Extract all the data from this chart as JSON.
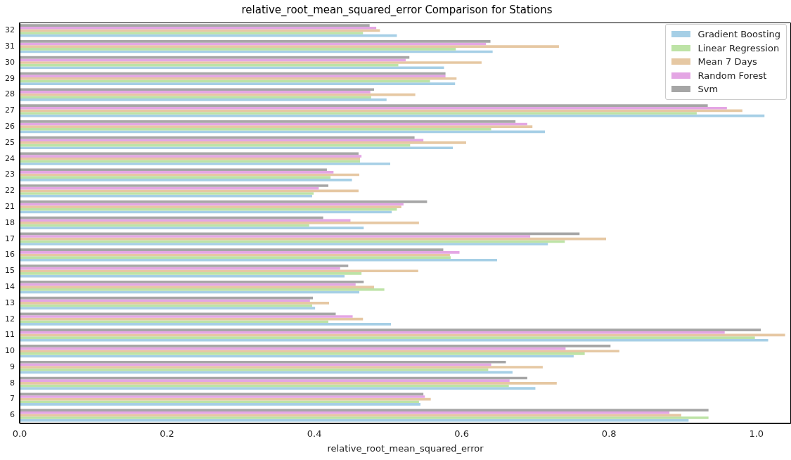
{
  "chart_data": {
    "type": "bar",
    "orientation": "horizontal",
    "title": "relative_root_mean_squared_error Comparison for Stations",
    "xlabel": "relative_root_mean_squared_error",
    "categories": [
      "32",
      "31",
      "30",
      "29",
      "28",
      "27",
      "26",
      "25",
      "24",
      "23",
      "22",
      "21",
      "18",
      "17",
      "16",
      "15",
      "14",
      "13",
      "12",
      "11",
      "10",
      "9",
      "8",
      "7",
      "6"
    ],
    "series": [
      {
        "name": "Gradient Boosting",
        "color": "#a6cfe6",
        "values": [
          0.512,
          0.642,
          0.576,
          0.591,
          0.498,
          1.011,
          0.713,
          0.588,
          0.503,
          0.451,
          0.397,
          0.505,
          0.467,
          0.717,
          0.648,
          0.441,
          0.461,
          0.401,
          0.504,
          1.016,
          0.752,
          0.669,
          0.7,
          0.544,
          0.908
        ]
      },
      {
        "name": "Linear Regression",
        "color": "#bde3a6",
        "values": [
          0.466,
          0.592,
          0.514,
          0.557,
          0.477,
          0.919,
          0.64,
          0.53,
          0.462,
          0.422,
          0.399,
          0.512,
          0.393,
          0.74,
          0.585,
          0.464,
          0.495,
          0.397,
          0.419,
          0.998,
          0.767,
          0.636,
          0.664,
          0.542,
          0.935
        ]
      },
      {
        "name": "Mean 7 Days",
        "color": "#e6c8a3",
        "values": [
          0.489,
          0.732,
          0.627,
          0.593,
          0.537,
          0.981,
          0.696,
          0.606,
          0.462,
          0.461,
          0.46,
          0.518,
          0.542,
          0.796,
          0.584,
          0.541,
          0.481,
          0.42,
          0.466,
          1.039,
          0.814,
          0.71,
          0.729,
          0.558,
          0.898
        ]
      },
      {
        "name": "Random Forest",
        "color": "#e4a6e4",
        "values": [
          0.484,
          0.633,
          0.524,
          0.578,
          0.476,
          0.96,
          0.689,
          0.548,
          0.464,
          0.426,
          0.406,
          0.521,
          0.449,
          0.693,
          0.597,
          0.435,
          0.456,
          0.394,
          0.452,
          0.957,
          0.741,
          0.64,
          0.665,
          0.55,
          0.882
        ]
      },
      {
        "name": "Svm",
        "color": "#a6a6a6",
        "values": [
          0.475,
          0.639,
          0.529,
          0.578,
          0.481,
          0.934,
          0.673,
          0.536,
          0.46,
          0.417,
          0.419,
          0.553,
          0.412,
          0.76,
          0.575,
          0.446,
          0.467,
          0.398,
          0.429,
          1.006,
          0.802,
          0.66,
          0.689,
          0.548,
          0.935
        ]
      }
    ],
    "xlim": [
      0,
      1.047
    ],
    "xticks": [
      {
        "value": 0,
        "label": "0.0"
      },
      {
        "value": 0.2,
        "label": "0.2"
      },
      {
        "value": 0.4,
        "label": "0.4"
      },
      {
        "value": 0.6,
        "label": "0.6"
      },
      {
        "value": 0.8,
        "label": "0.8"
      },
      {
        "value": 1.0,
        "label": "1.0"
      }
    ],
    "grid": false,
    "legend": "top right"
  }
}
